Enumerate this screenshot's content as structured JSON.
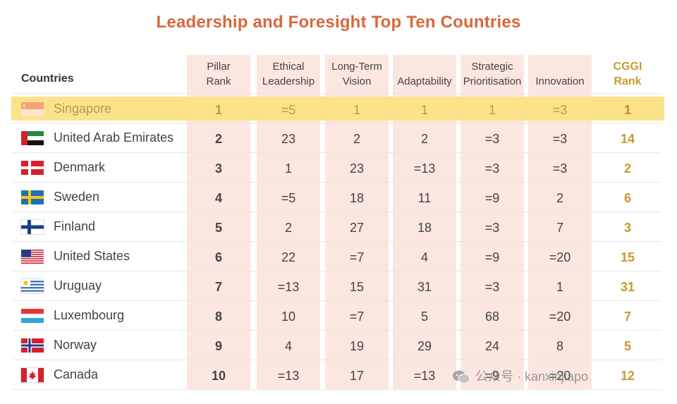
{
  "title": "Leadership and Foresight Top Ten Countries",
  "chart_data": {
    "type": "table",
    "title": "Leadership and Foresight Top Ten Countries",
    "columns": [
      {
        "key": "country",
        "label": "Countries"
      },
      {
        "key": "pillar",
        "label": "Pillar Rank",
        "l1": "Pillar",
        "l2": "Rank"
      },
      {
        "key": "ethical",
        "label": "Ethical Leadership",
        "l1": "Ethical",
        "l2": "Leadership"
      },
      {
        "key": "longterm",
        "label": "Long-Term Vision",
        "l1": "Long-Term",
        "l2": "Vision"
      },
      {
        "key": "adapt",
        "label": "Adaptability",
        "l1": "",
        "l2": "Adaptability"
      },
      {
        "key": "strategic",
        "label": "Strategic Prioritisation",
        "l1": "Strategic",
        "l2": "Prioritisation"
      },
      {
        "key": "innov",
        "label": "Innovation",
        "l1": "",
        "l2": "Innovation"
      },
      {
        "key": "cggi",
        "label": "CGGI Rank",
        "l1": "CGGI",
        "l2": "Rank"
      }
    ],
    "rows": [
      {
        "country": "Singapore",
        "flag": "singapore-flag",
        "pillar": "1",
        "ethical": "=5",
        "longterm": "1",
        "adapt": "1",
        "strategic": "1",
        "innov": "=3",
        "cggi": "1",
        "highlighted": true
      },
      {
        "country": "United Arab Emirates",
        "flag": "uae-flag",
        "pillar": "2",
        "ethical": "23",
        "longterm": "2",
        "adapt": "2",
        "strategic": "=3",
        "innov": "=3",
        "cggi": "14"
      },
      {
        "country": "Denmark",
        "flag": "denmark-flag",
        "pillar": "3",
        "ethical": "1",
        "longterm": "23",
        "adapt": "=13",
        "strategic": "=3",
        "innov": "=3",
        "cggi": "2"
      },
      {
        "country": "Sweden",
        "flag": "sweden-flag",
        "pillar": "4",
        "ethical": "=5",
        "longterm": "18",
        "adapt": "11",
        "strategic": "=9",
        "innov": "2",
        "cggi": "6"
      },
      {
        "country": "Finland",
        "flag": "finland-flag",
        "pillar": "5",
        "ethical": "2",
        "longterm": "27",
        "adapt": "18",
        "strategic": "=3",
        "innov": "7",
        "cggi": "3"
      },
      {
        "country": "United States",
        "flag": "usa-flag",
        "pillar": "6",
        "ethical": "22",
        "longterm": "=7",
        "adapt": "4",
        "strategic": "=9",
        "innov": "=20",
        "cggi": "15"
      },
      {
        "country": "Uruguay",
        "flag": "uruguay-flag",
        "pillar": "7",
        "ethical": "=13",
        "longterm": "15",
        "adapt": "31",
        "strategic": "=3",
        "innov": "1",
        "cggi": "31"
      },
      {
        "country": "Luxembourg",
        "flag": "luxembourg-flag",
        "pillar": "8",
        "ethical": "10",
        "longterm": "=7",
        "adapt": "5",
        "strategic": "68",
        "innov": "=20",
        "cggi": "7"
      },
      {
        "country": "Norway",
        "flag": "norway-flag",
        "pillar": "9",
        "ethical": "4",
        "longterm": "19",
        "adapt": "29",
        "strategic": "24",
        "innov": "8",
        "cggi": "5"
      },
      {
        "country": "Canada",
        "flag": "canada-flag",
        "pillar": "10",
        "ethical": "=13",
        "longterm": "17",
        "adapt": "=13",
        "strategic": "=9",
        "innov": "=20",
        "cggi": "12"
      }
    ]
  },
  "watermark": "公众号 · kanxinjiapo",
  "colors": {
    "accent": "#d9673a",
    "cggi": "#c89a2c",
    "shade": "#fbe7df",
    "highlight": "#fce38a"
  }
}
